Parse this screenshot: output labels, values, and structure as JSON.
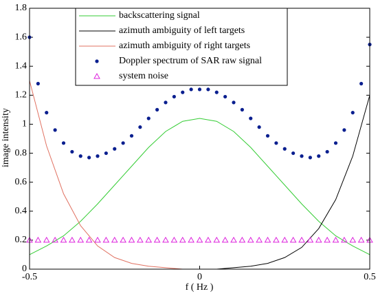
{
  "chart_data": {
    "type": "line",
    "xlabel": "f ( Hz )",
    "ylabel": "image intensity",
    "xlim": [
      -0.5,
      0.5
    ],
    "ylim": [
      0,
      1.8
    ],
    "xticks": [
      -0.5,
      0,
      0.5
    ],
    "yticks": [
      0,
      0.2,
      0.4,
      0.6,
      0.8,
      1,
      1.2,
      1.4,
      1.6,
      1.8
    ],
    "legend": "upper left",
    "series": [
      {
        "name": "backscattering signal",
        "color": "#33cc33",
        "marker": "none",
        "x": [
          -0.5,
          -0.45,
          -0.4,
          -0.35,
          -0.3,
          -0.25,
          -0.2,
          -0.15,
          -0.1,
          -0.05,
          0,
          0.05,
          0.1,
          0.15,
          0.2,
          0.25,
          0.3,
          0.35,
          0.4,
          0.45,
          0.5
        ],
        "values": [
          0.1,
          0.16,
          0.23,
          0.33,
          0.45,
          0.58,
          0.71,
          0.84,
          0.95,
          1.02,
          1.04,
          1.02,
          0.95,
          0.84,
          0.71,
          0.58,
          0.45,
          0.33,
          0.23,
          0.16,
          0.1
        ]
      },
      {
        "name": "azimuth ambiguity of left targets",
        "color": "#000000",
        "marker": "none",
        "x": [
          -0.5,
          -0.45,
          -0.4,
          -0.35,
          -0.3,
          -0.25,
          -0.2,
          -0.15,
          -0.1,
          -0.05,
          0,
          0.05,
          0.1,
          0.15,
          0.2,
          0.25,
          0.3,
          0.35,
          0.4,
          0.45,
          0.5
        ],
        "values": [
          0,
          0,
          0,
          0,
          0,
          0,
          0,
          0,
          0,
          0,
          0,
          0,
          0.01,
          0.02,
          0.04,
          0.08,
          0.15,
          0.28,
          0.48,
          0.78,
          1.2
        ]
      },
      {
        "name": "azimuth ambiguity of right targets",
        "color": "#e07060",
        "marker": "none",
        "x": [
          -0.5,
          -0.45,
          -0.4,
          -0.35,
          -0.3,
          -0.25,
          -0.2,
          -0.15,
          -0.1,
          -0.05,
          0,
          0.05,
          0.1,
          0.15,
          0.2,
          0.25,
          0.3,
          0.35,
          0.4,
          0.45,
          0.5
        ],
        "values": [
          1.3,
          0.85,
          0.52,
          0.3,
          0.16,
          0.08,
          0.04,
          0.02,
          0.01,
          0,
          0,
          0,
          0,
          0,
          0,
          0,
          0,
          0,
          0,
          0,
          0
        ]
      },
      {
        "name": "Doppler spectrum of SAR raw signal",
        "color": "#0a1f8f",
        "marker": "o",
        "x": [
          -0.5,
          -0.475,
          -0.45,
          -0.425,
          -0.4,
          -0.375,
          -0.35,
          -0.325,
          -0.3,
          -0.275,
          -0.25,
          -0.225,
          -0.2,
          -0.175,
          -0.15,
          -0.125,
          -0.1,
          -0.075,
          -0.05,
          -0.025,
          0,
          0.025,
          0.05,
          0.075,
          0.1,
          0.125,
          0.15,
          0.175,
          0.2,
          0.225,
          0.25,
          0.275,
          0.3,
          0.325,
          0.35,
          0.375,
          0.4,
          0.425,
          0.45,
          0.475,
          0.5
        ],
        "values": [
          1.6,
          1.28,
          1.08,
          0.96,
          0.87,
          0.81,
          0.78,
          0.77,
          0.78,
          0.8,
          0.83,
          0.87,
          0.92,
          0.98,
          1.04,
          1.1,
          1.15,
          1.19,
          1.22,
          1.24,
          1.24,
          1.24,
          1.22,
          1.19,
          1.15,
          1.1,
          1.04,
          0.98,
          0.92,
          0.87,
          0.83,
          0.8,
          0.78,
          0.77,
          0.78,
          0.81,
          0.87,
          0.96,
          1.08,
          1.28,
          1.55
        ]
      },
      {
        "name": "system noise",
        "color": "#dd22dd",
        "marker": "^",
        "x": [
          -0.5,
          -0.475,
          -0.45,
          -0.425,
          -0.4,
          -0.375,
          -0.35,
          -0.325,
          -0.3,
          -0.275,
          -0.25,
          -0.225,
          -0.2,
          -0.175,
          -0.15,
          -0.125,
          -0.1,
          -0.075,
          -0.05,
          -0.025,
          0,
          0.025,
          0.05,
          0.075,
          0.1,
          0.125,
          0.15,
          0.175,
          0.2,
          0.225,
          0.25,
          0.275,
          0.3,
          0.325,
          0.35,
          0.375,
          0.4,
          0.425,
          0.45,
          0.475,
          0.5
        ],
        "values": [
          0.2,
          0.2,
          0.2,
          0.2,
          0.2,
          0.2,
          0.2,
          0.2,
          0.2,
          0.2,
          0.2,
          0.2,
          0.2,
          0.2,
          0.2,
          0.2,
          0.2,
          0.2,
          0.2,
          0.2,
          0.2,
          0.2,
          0.2,
          0.2,
          0.2,
          0.2,
          0.2,
          0.2,
          0.2,
          0.2,
          0.2,
          0.2,
          0.2,
          0.2,
          0.2,
          0.2,
          0.2,
          0.2,
          0.2,
          0.2,
          0.2
        ]
      }
    ]
  }
}
